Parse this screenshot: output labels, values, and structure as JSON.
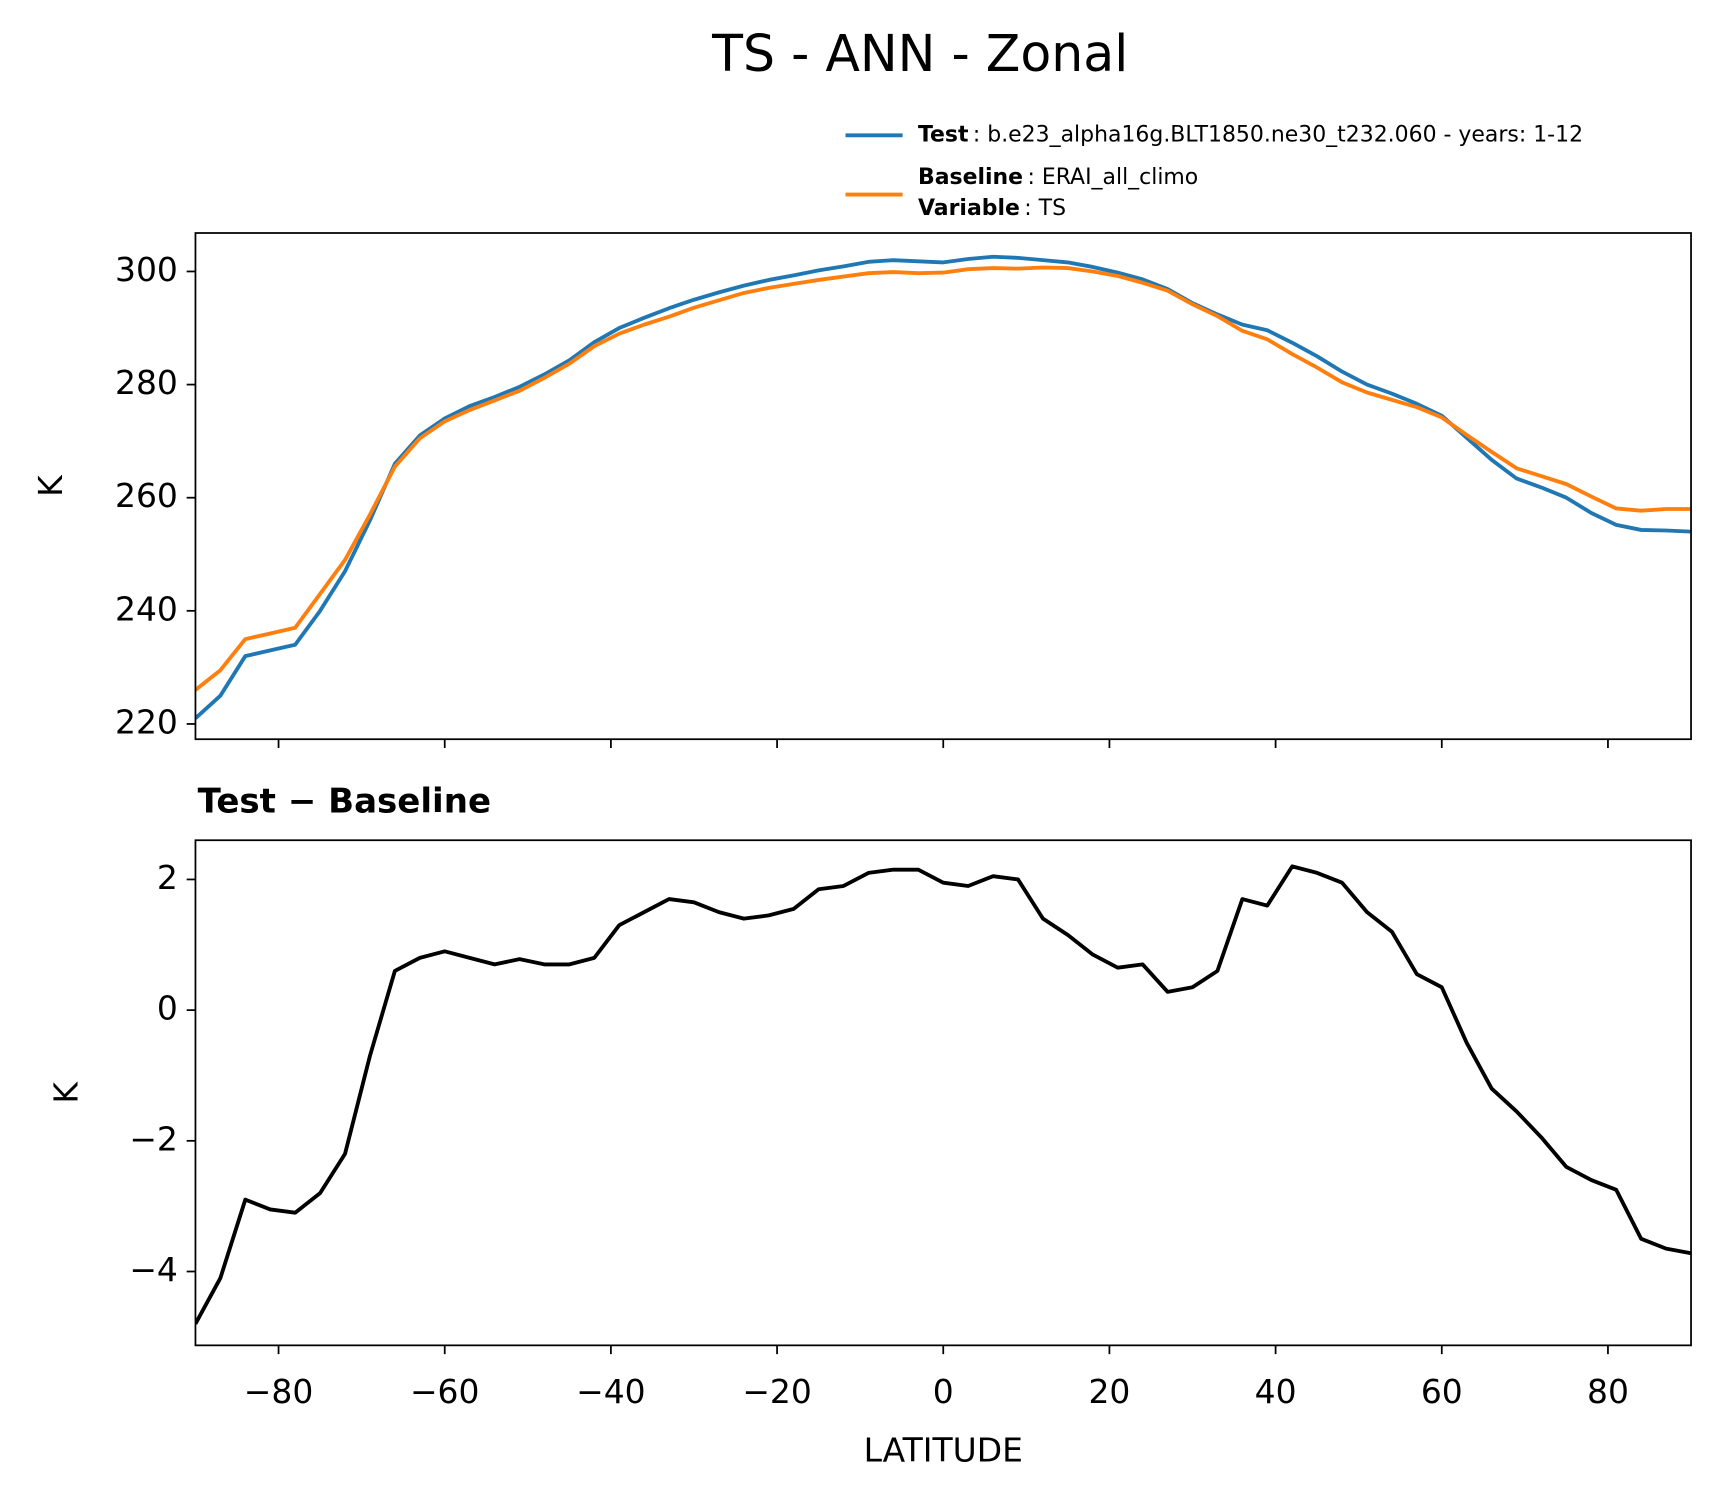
{
  "chart_data": [
    {
      "type": "line",
      "title": "TS - ANN - Zonal",
      "ylabel": "K",
      "x": [
        -90,
        -87,
        -84,
        -81,
        -78,
        -75,
        -72,
        -69,
        -66,
        -63,
        -60,
        -57,
        -54,
        -51,
        -48,
        -45,
        -42,
        -39,
        -36,
        -33,
        -30,
        -27,
        -24,
        -21,
        -18,
        -15,
        -12,
        -9,
        -6,
        -3,
        0,
        3,
        6,
        9,
        12,
        15,
        18,
        21,
        24,
        27,
        30,
        33,
        36,
        39,
        42,
        45,
        48,
        51,
        54,
        57,
        60,
        63,
        66,
        69,
        72,
        75,
        78,
        81,
        84,
        87,
        90
      ],
      "series": [
        {
          "name": "Test",
          "detail": ": b.e23_alpha16g.BLT1850.ne30_t232.060 - years: 1-12",
          "color": "#1f77b4",
          "values": [
            221,
            225,
            232,
            233,
            234,
            240,
            247,
            256,
            266,
            271,
            274,
            276.2,
            277.8,
            279.6,
            281.8,
            284.3,
            287.5,
            290,
            291.8,
            293.5,
            295,
            296.3,
            297.5,
            298.5,
            299.3,
            300.2,
            300.9,
            301.7,
            302,
            301.8,
            301.6,
            302.2,
            302.6,
            302.4,
            302,
            301.6,
            300.8,
            299.8,
            298.6,
            296.9,
            294.4,
            292.4,
            290.6,
            289.6,
            287.4,
            285,
            282.3,
            280,
            278.4,
            276.6,
            274.5,
            270.6,
            266.7,
            263.4,
            261.8,
            260,
            257.3,
            255.2,
            254.3,
            254.2,
            254
          ]
        },
        {
          "name": "Baseline",
          "detail": ": ERAI_all_climo",
          "color": "#ff7f0e",
          "values": [
            226,
            229.5,
            235,
            236,
            237,
            243,
            249,
            257,
            265.5,
            270.5,
            273.5,
            275.5,
            277.2,
            278.9,
            281.2,
            283.7,
            286.8,
            289,
            290.6,
            292,
            293.6,
            294.9,
            296.2,
            297.1,
            297.8,
            298.5,
            299.1,
            299.7,
            299.9,
            299.7,
            299.8,
            300.4,
            300.6,
            300.5,
            300.7,
            300.6,
            300,
            299.2,
            298,
            296.6,
            294.2,
            292.1,
            289.5,
            288,
            285.4,
            283,
            280.4,
            278.6,
            277.3,
            276,
            274.2,
            271.1,
            268.1,
            265.2,
            263.8,
            262.4,
            260.2,
            258.1,
            257.7,
            258,
            258
          ]
        }
      ],
      "legend_extra": {
        "name": "Variable",
        "detail": ": TS"
      },
      "xlim": [
        -90,
        90
      ],
      "ylim": [
        217.3,
        306.8
      ],
      "yticks": [
        220,
        240,
        260,
        280,
        300
      ]
    },
    {
      "type": "line",
      "title": "Test − Baseline",
      "ylabel": "K",
      "xlabel": "LATITUDE",
      "x": [
        -90,
        -87,
        -84,
        -81,
        -78,
        -75,
        -72,
        -69,
        -66,
        -63,
        -60,
        -57,
        -54,
        -51,
        -48,
        -45,
        -42,
        -39,
        -36,
        -33,
        -30,
        -27,
        -24,
        -21,
        -18,
        -15,
        -12,
        -9,
        -6,
        -3,
        0,
        3,
        6,
        9,
        12,
        15,
        18,
        21,
        24,
        27,
        30,
        33,
        36,
        39,
        42,
        45,
        48,
        51,
        54,
        57,
        60,
        63,
        66,
        69,
        72,
        75,
        78,
        81,
        84,
        87,
        90
      ],
      "series": [
        {
          "color": "#000000",
          "values": [
            -4.8,
            -4.1,
            -2.9,
            -3.05,
            -3.1,
            -2.8,
            -2.2,
            -0.7,
            0.6,
            0.8,
            0.9,
            0.8,
            0.7,
            0.78,
            0.7,
            0.7,
            0.8,
            1.3,
            1.5,
            1.7,
            1.65,
            1.5,
            1.4,
            1.45,
            1.55,
            1.85,
            1.9,
            2.1,
            2.15,
            2.15,
            1.95,
            1.9,
            2.05,
            2.0,
            1.4,
            1.15,
            0.85,
            0.65,
            0.7,
            0.28,
            0.35,
            0.6,
            1.7,
            1.6,
            2.2,
            2.1,
            1.95,
            1.5,
            1.2,
            0.55,
            0.35,
            -0.5,
            -1.2,
            -1.55,
            -1.95,
            -2.4,
            -2.6,
            -2.75,
            -3.5,
            -3.65,
            -3.72
          ]
        }
      ],
      "xlim": [
        -90,
        90
      ],
      "ylim": [
        -5.13,
        2.6
      ],
      "xticks": [
        {
          "value": -80,
          "label": "−80"
        },
        {
          "value": -60,
          "label": "−60"
        },
        {
          "value": -40,
          "label": "−40"
        },
        {
          "value": -20,
          "label": "−20"
        },
        0,
        20,
        40,
        60,
        80
      ],
      "yticks": [
        {
          "value": -4,
          "label": "−4"
        },
        {
          "value": -2,
          "label": "−2"
        },
        0,
        2
      ]
    }
  ]
}
